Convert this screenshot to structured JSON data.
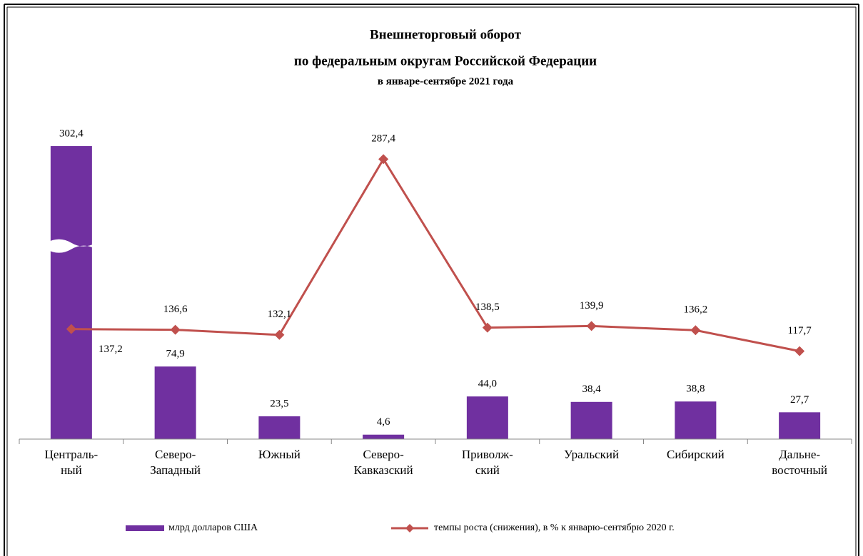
{
  "chart_data": {
    "type": "bar",
    "title": [
      "Внешнеторговый оборот",
      "по федеральным округам Российской Федерации"
    ],
    "subtitle": "в январе-сентябре 2021 года",
    "categories": [
      [
        "Централь-",
        "ный"
      ],
      [
        "Северо-",
        "Западный"
      ],
      [
        "Южный"
      ],
      [
        "Северо-",
        "Кавказский"
      ],
      [
        "Приволж-",
        "ский"
      ],
      [
        "Уральский"
      ],
      [
        "Сибирский"
      ],
      [
        "Дальне-",
        "восточный"
      ]
    ],
    "series": [
      {
        "name": "млрд долларов США",
        "type": "bar",
        "color": "#7030a0",
        "values": [
          302.4,
          74.9,
          23.5,
          4.6,
          44.0,
          38.4,
          38.8,
          27.7
        ],
        "value_labels": [
          "302,4",
          "74,9",
          "23,5",
          "4,6",
          "44,0",
          "38,4",
          "38,8",
          "27,7"
        ]
      },
      {
        "name": "темпы роста (снижения), в % к январю-сентябрю 2020 г.",
        "type": "line",
        "axis": "y2",
        "color": "#c0504d",
        "values": [
          137.2,
          136.6,
          132.1,
          287.4,
          138.5,
          139.9,
          136.2,
          117.7
        ],
        "value_labels": [
          "137,2",
          "136,6",
          "132,1",
          "287,4",
          "138,5",
          "139,9",
          "136,2",
          "117,7"
        ]
      }
    ],
    "ylim": [
      0,
      320
    ],
    "y2lim": [
      40,
      314
    ],
    "legend": "bottom"
  }
}
